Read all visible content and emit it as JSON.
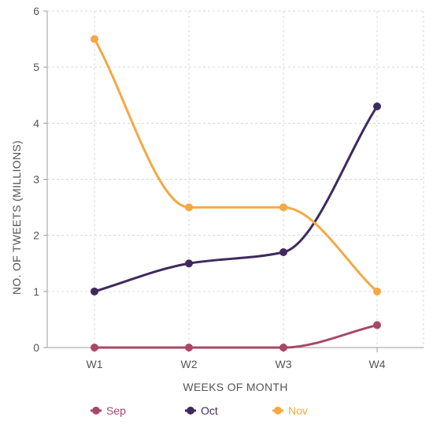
{
  "chart_data": {
    "type": "line",
    "categories": [
      "W1",
      "W2",
      "W3",
      "W4"
    ],
    "series": [
      {
        "name": "Sep",
        "color": "#a94766",
        "values": [
          0,
          0,
          0,
          0.4
        ]
      },
      {
        "name": "Oct",
        "color": "#3f2a5c",
        "values": [
          1,
          1.5,
          1.7,
          4.3
        ]
      },
      {
        "name": "Nov",
        "color": "#f5a844",
        "values": [
          5.5,
          2.5,
          2.5,
          1
        ]
      }
    ],
    "xlabel": "WEEKS OF MONTH",
    "ylabel": "NO. OF TWEETS (MILLIONS)",
    "ylim": [
      0,
      6
    ],
    "yticks": [
      0,
      1,
      2,
      3,
      4,
      5,
      6
    ],
    "grid": true,
    "legend_position": "bottom",
    "curve": "smooth"
  }
}
